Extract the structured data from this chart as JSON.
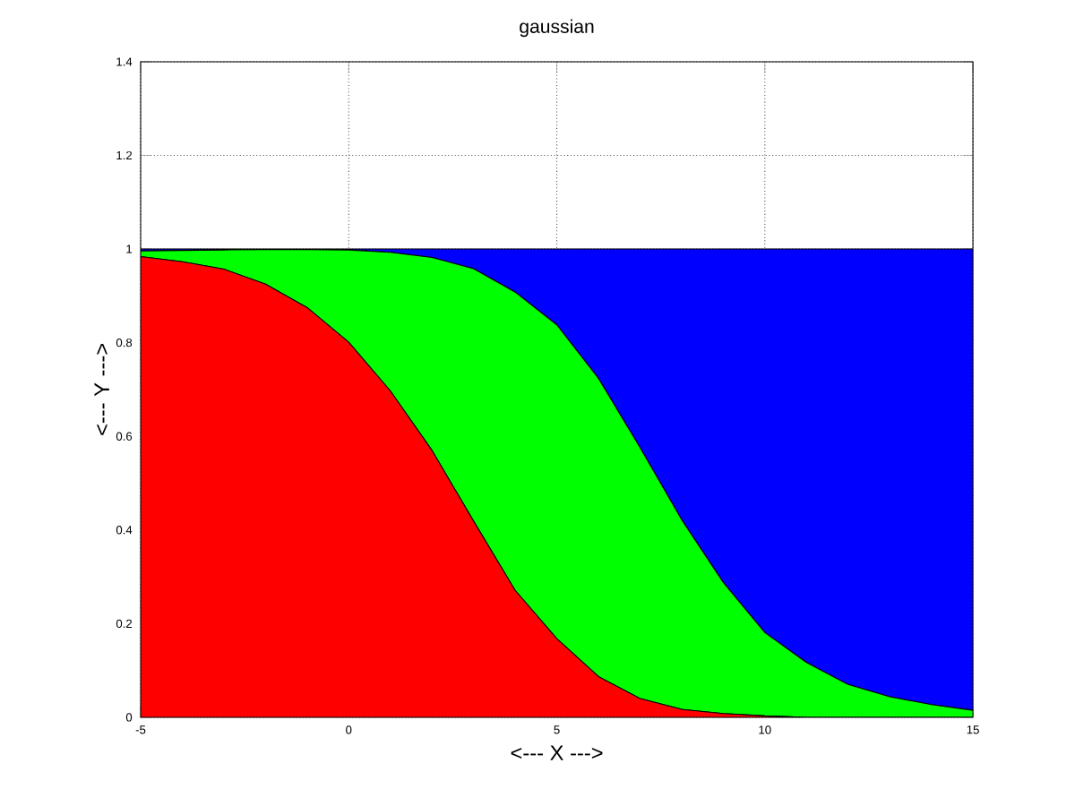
{
  "chart_data": {
    "type": "area",
    "title": "gaussian",
    "xlabel": "<--- X --->",
    "ylabel": "<--- Y --->",
    "stacked": true,
    "grid": true,
    "x": [
      -5,
      -4,
      -3,
      -2,
      -1,
      0,
      1,
      2,
      3,
      4,
      5,
      6,
      7,
      8,
      9,
      10,
      11,
      12,
      13,
      14,
      15
    ],
    "series": [
      {
        "color": "#ff0000",
        "values": [
          0.984,
          0.973,
          0.957,
          0.925,
          0.875,
          0.801,
          0.697,
          0.57,
          0.419,
          0.271,
          0.168,
          0.087,
          0.04,
          0.017,
          0.008,
          0.003,
          0,
          0,
          0,
          0,
          0
        ]
      },
      {
        "color": "#00ff00",
        "values": [
          0.012,
          0.024,
          0.041,
          0.074,
          0.124,
          0.197,
          0.296,
          0.412,
          0.539,
          0.637,
          0.67,
          0.637,
          0.536,
          0.405,
          0.28,
          0.178,
          0.117,
          0.07,
          0.044,
          0.027,
          0.015
        ]
      },
      {
        "color": "#0000ff",
        "values": [
          0.004,
          0.003,
          0.002,
          0.001,
          0.001,
          0.002,
          0.007,
          0.018,
          0.042,
          0.092,
          0.162,
          0.276,
          0.424,
          0.578,
          0.712,
          0.819,
          0.883,
          0.93,
          0.956,
          0.973,
          0.985
        ]
      }
    ],
    "xlim": [
      -5,
      15
    ],
    "ylim": [
      0,
      1.4
    ],
    "xticks": [
      -5,
      0,
      5,
      10,
      15
    ],
    "yticks": [
      0,
      0.2,
      0.4,
      0.6,
      0.8,
      1,
      1.2,
      1.4
    ]
  }
}
